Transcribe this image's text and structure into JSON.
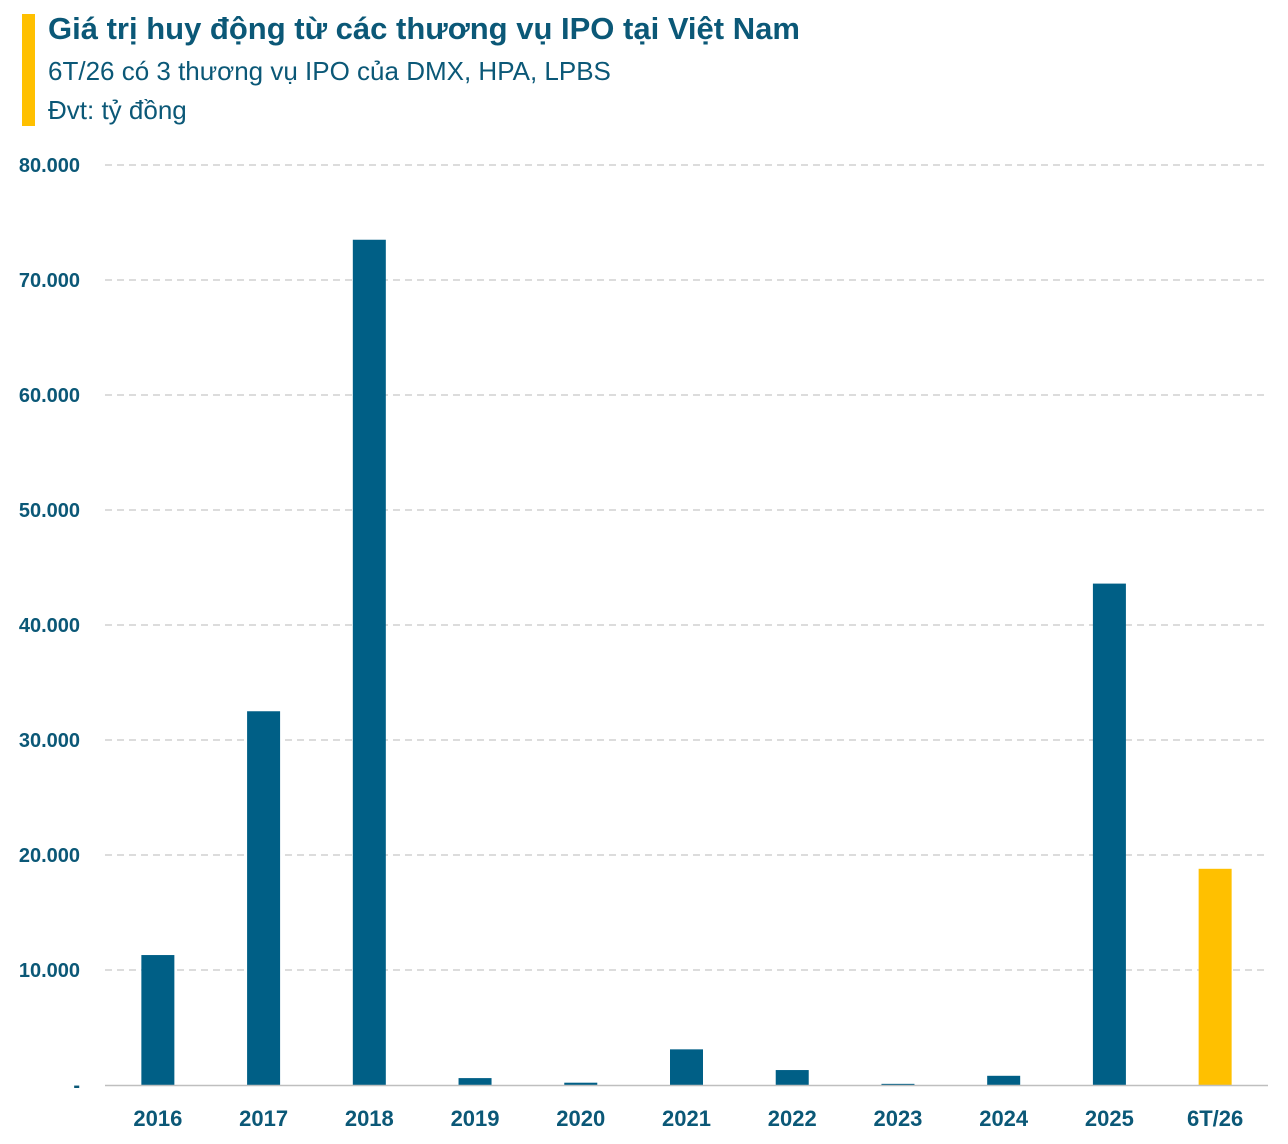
{
  "colors": {
    "bar": "#005f86",
    "highlight": "#ffc000",
    "text": "#0b5877",
    "grid": "#c8c8c8",
    "axis": "#bfbfbf"
  },
  "header": {
    "title": "Giá trị huy động từ các thương vụ IPO tại Việt Nam",
    "subtitle": "6T/26 có 3 thương vụ IPO của DMX, HPA, LPBS",
    "unit": "Đvt: tỷ đồng"
  },
  "chart_data": {
    "type": "bar",
    "title": "Giá trị huy động từ các thương vụ IPO tại Việt Nam",
    "subtitle": "6T/26 có 3 thương vụ IPO của DMX, HPA, LPBS",
    "ylabel": "Đvt: tỷ đồng",
    "xlabel": "",
    "categories": [
      "2016",
      "2017",
      "2018",
      "2019",
      "2020",
      "2021",
      "2022",
      "2023",
      "2024",
      "2025",
      "6T/26"
    ],
    "values": [
      11300,
      32500,
      73500,
      600,
      200,
      3100,
      1300,
      100,
      800,
      43600,
      18800
    ],
    "highlight_index": 10,
    "ylim": [
      0,
      80000
    ],
    "yticks": [
      0,
      10000,
      20000,
      30000,
      40000,
      50000,
      60000,
      70000,
      80000
    ],
    "ytick_labels": [
      "-",
      "10.000",
      "20.000",
      "30.000",
      "40.000",
      "50.000",
      "60.000",
      "70.000",
      "80.000"
    ],
    "grid": true,
    "legend": "none"
  }
}
